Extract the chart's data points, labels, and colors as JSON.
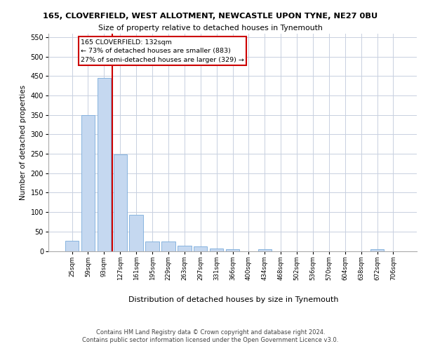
{
  "title1": "165, CLOVERFIELD, WEST ALLOTMENT, NEWCASTLE UPON TYNE, NE27 0BU",
  "title2": "Size of property relative to detached houses in Tynemouth",
  "xlabel": "Distribution of detached houses by size in Tynemouth",
  "ylabel": "Number of detached properties",
  "categories": [
    "25sqm",
    "59sqm",
    "93sqm",
    "127sqm",
    "161sqm",
    "195sqm",
    "229sqm",
    "263sqm",
    "297sqm",
    "331sqm",
    "366sqm",
    "400sqm",
    "434sqm",
    "468sqm",
    "502sqm",
    "536sqm",
    "570sqm",
    "604sqm",
    "638sqm",
    "672sqm",
    "706sqm"
  ],
  "values": [
    27,
    350,
    445,
    248,
    93,
    25,
    25,
    14,
    11,
    7,
    5,
    0,
    4,
    0,
    0,
    0,
    0,
    0,
    0,
    4,
    0
  ],
  "bar_color": "#c5d8f0",
  "bar_edgecolor": "#7aabdb",
  "marker_line_color": "#cc0000",
  "annotation_line1": "165 CLOVERFIELD: 132sqm",
  "annotation_line2": "← 73% of detached houses are smaller (883)",
  "annotation_line3": "27% of semi-detached houses are larger (329) →",
  "ylim": [
    0,
    560
  ],
  "yticks": [
    0,
    50,
    100,
    150,
    200,
    250,
    300,
    350,
    400,
    450,
    500,
    550
  ],
  "footer1": "Contains HM Land Registry data © Crown copyright and database right 2024.",
  "footer2": "Contains public sector information licensed under the Open Government Licence v3.0.",
  "bg_color": "#ffffff",
  "grid_color": "#c8d0e0",
  "axvline_x": 2.5
}
